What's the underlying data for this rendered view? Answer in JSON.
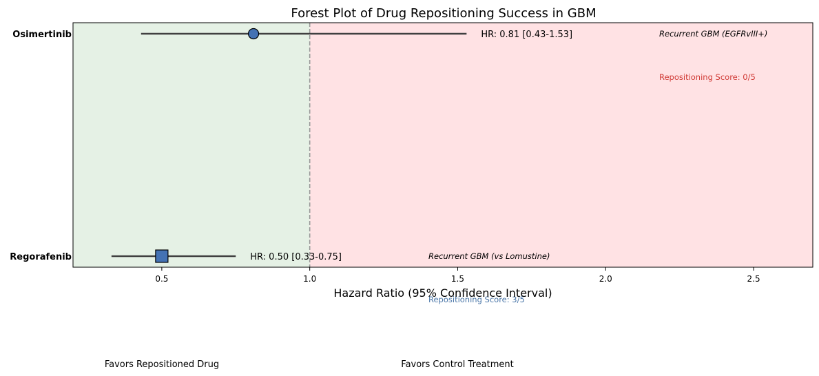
{
  "chart_data": {
    "type": "scatter",
    "title": "Forest Plot of Drug Repositioning Success in GBM",
    "xlabel": "Hazard Ratio (95% Confidence Interval)",
    "ylabel": "",
    "xlim": [
      0.2,
      2.7
    ],
    "xticks": [
      "0.5",
      "1.0",
      "1.5",
      "2.0",
      "2.5"
    ],
    "reference_line": 1.0,
    "grid": false,
    "regions": [
      {
        "name": "favors-repositioned",
        "from": 0.2,
        "to": 1.0,
        "color": "#e5f1e5"
      },
      {
        "name": "favors-control",
        "from": 1.0,
        "to": 2.7,
        "color": "#ffe2e4"
      }
    ],
    "favors_left": "Favors Repositioned Drug",
    "favors_right": "Favors Control Treatment",
    "series": [
      {
        "drug": "Osimertinib",
        "hr": 0.81,
        "ci": [
          0.43,
          1.53
        ],
        "label": "HR: 0.81 [0.43-1.53]",
        "setting": "Recurrent GBM (EGFRvIII+)",
        "score_label": "Repositioning Score: 0/5",
        "marker": "circle",
        "marker_color": "#4472b4",
        "score_color": "#d03a35"
      },
      {
        "drug": "Regorafenib",
        "hr": 0.5,
        "ci": [
          0.33,
          0.75
        ],
        "label": "HR: 0.50 [0.33-0.75]",
        "setting": "Recurrent GBM (vs Lomustine)",
        "score_label": "Repositioning Score: 3/5",
        "marker": "square",
        "marker_color": "#4472b4",
        "score_color": "#4a76a8"
      }
    ]
  }
}
